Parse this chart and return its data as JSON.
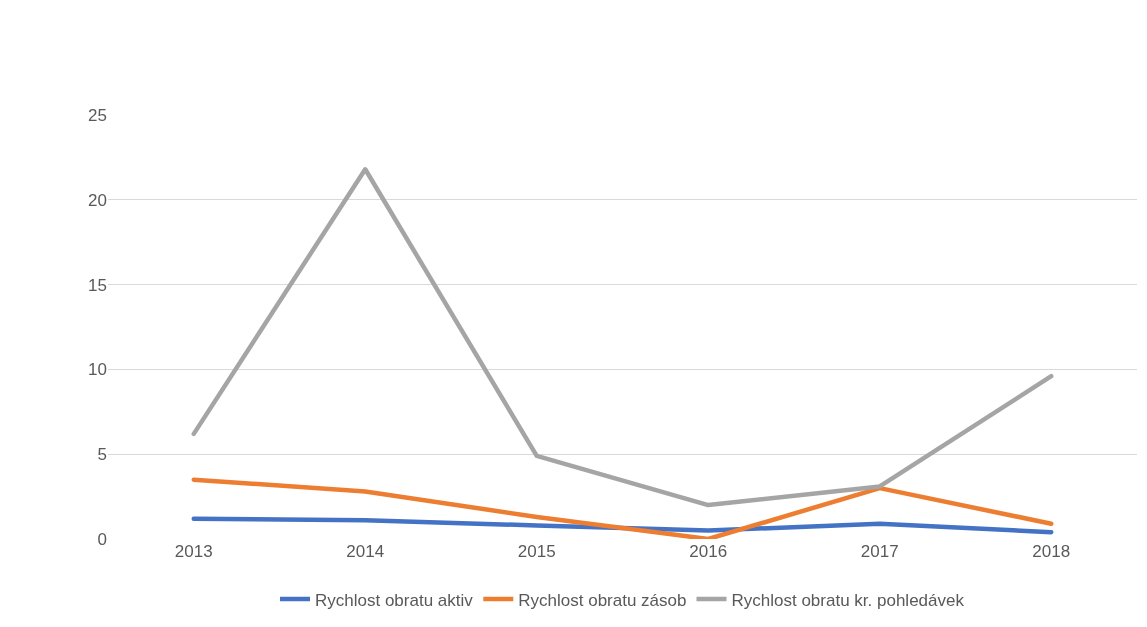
{
  "chart_data": {
    "type": "line",
    "categories": [
      "2013",
      "2014",
      "2015",
      "2016",
      "2017",
      "2018"
    ],
    "series": [
      {
        "name": "Rychlost obratu aktiv",
        "color": "#4472c4",
        "values": [
          1.2,
          1.1,
          0.8,
          0.5,
          0.9,
          0.4
        ]
      },
      {
        "name": "Rychlost obratu zásob",
        "color": "#ed7d31",
        "values": [
          3.5,
          2.8,
          1.3,
          0,
          3.0,
          0.9
        ]
      },
      {
        "name": "Rychlost obratu kr. pohledávek",
        "color": "#a5a5a5",
        "values": [
          6.2,
          21.8,
          4.9,
          2.0,
          3.1,
          9.6
        ]
      }
    ],
    "ylim": [
      0,
      25
    ],
    "yticks": [
      0,
      5,
      10,
      15,
      20,
      25
    ],
    "grid": "y",
    "legend": "bottom",
    "marker": "none",
    "line_style": "solid"
  }
}
